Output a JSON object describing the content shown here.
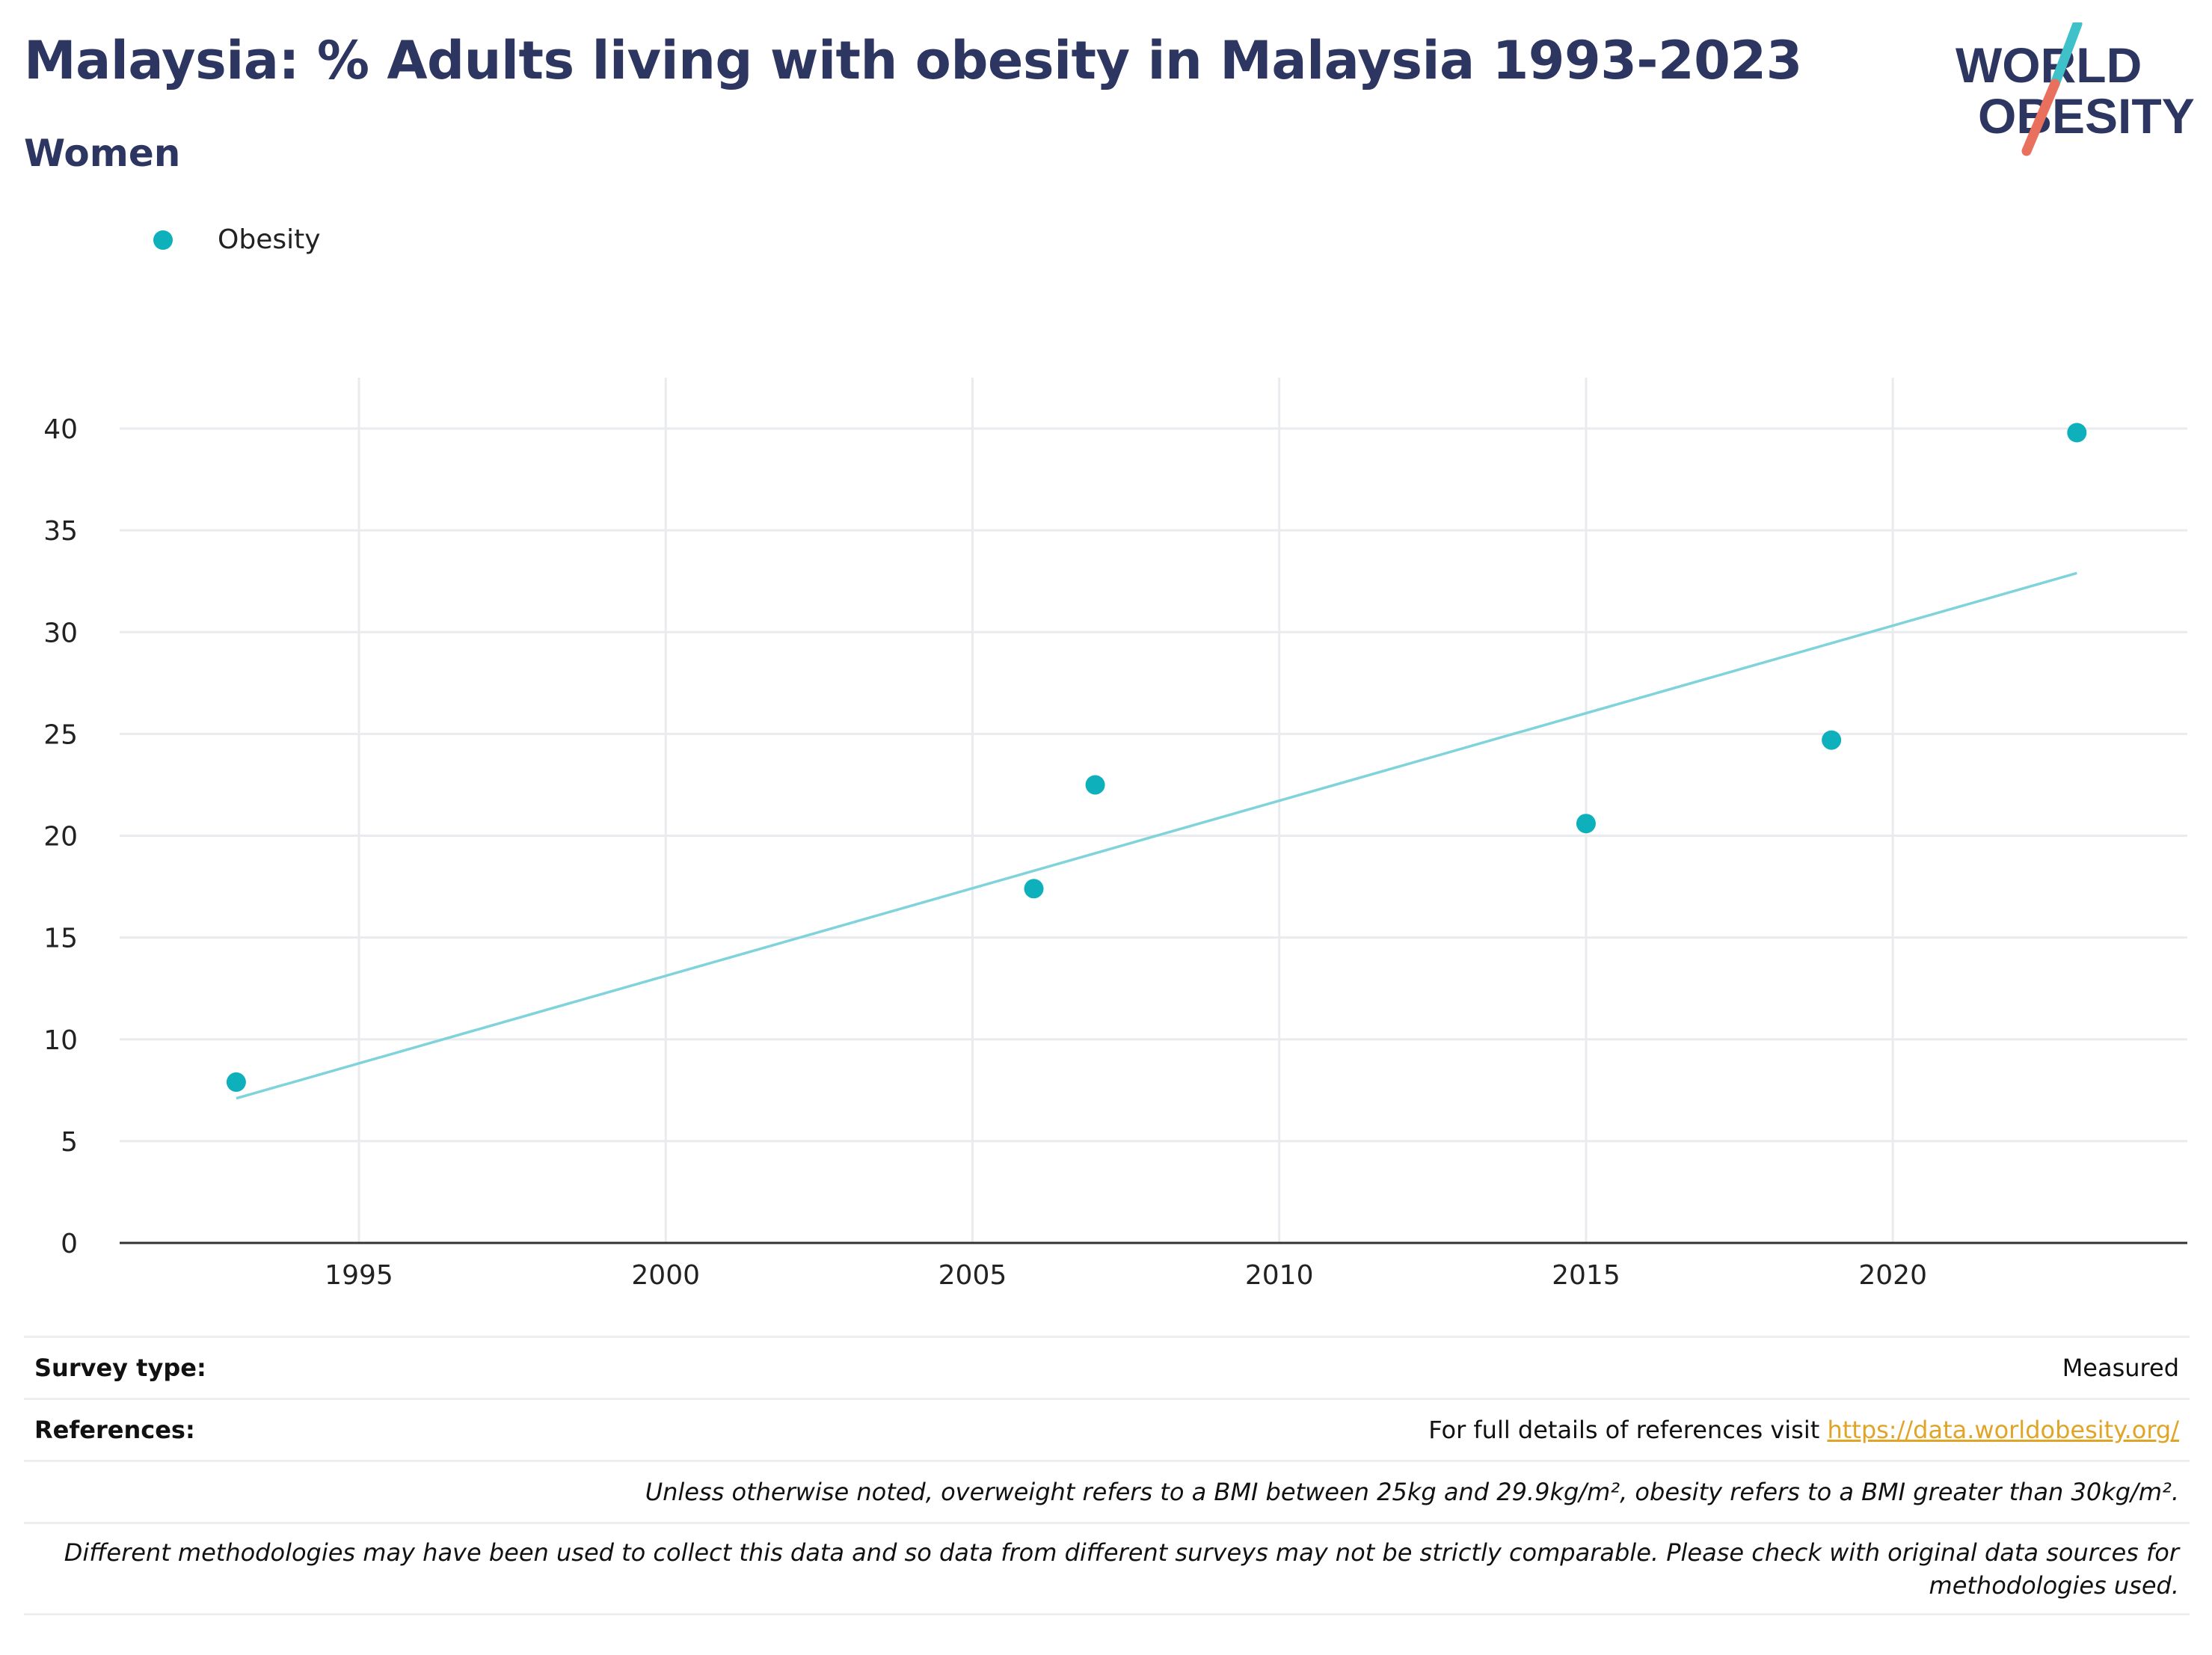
{
  "header": {
    "title": "Malaysia: % Adults living with obesity in Malaysia 1993-2023",
    "subtitle": "Women"
  },
  "logo": {
    "line1": "WORLD",
    "line2": "OBESITY",
    "accent_teal": "#3ec1c9",
    "accent_red": "#e8705c",
    "text_color": "#2d3561"
  },
  "chart_data": {
    "type": "scatter",
    "series": [
      {
        "name": "Obesity",
        "color": "#0eb0bb",
        "points": [
          {
            "x": 1993,
            "y": 7.9
          },
          {
            "x": 2006,
            "y": 17.4
          },
          {
            "x": 2007,
            "y": 22.5
          },
          {
            "x": 2015,
            "y": 20.6
          },
          {
            "x": 2019,
            "y": 24.7
          },
          {
            "x": 2023,
            "y": 39.8
          }
        ]
      }
    ],
    "trendline": {
      "color": "#7fd3da",
      "start": {
        "x": 1993,
        "y": 7.1
      },
      "end": {
        "x": 2023,
        "y": 32.9
      }
    },
    "xlim": [
      1991.1,
      2024.8
    ],
    "ylim": [
      0,
      42.5
    ],
    "xticks": [
      1995,
      2000,
      2005,
      2010,
      2015,
      2020
    ],
    "yticks": [
      0,
      5,
      10,
      15,
      20,
      25,
      30,
      35,
      40
    ],
    "grid": true,
    "legend_position": "top-left"
  },
  "footer": {
    "survey_type_label": "Survey type:",
    "survey_type_value": "Measured",
    "references_label": "References:",
    "references_text": "For full details of references visit ",
    "references_link": "https://data.worldobesity.org/",
    "note1": "Unless otherwise noted, overweight refers to a BMI between 25kg and 29.9kg/m², obesity refers to a BMI greater than 30kg/m².",
    "note2": "Different methodologies may have been used to collect this data and so data from different surveys may not be strictly comparable. Please check with original data sources for methodologies used."
  }
}
